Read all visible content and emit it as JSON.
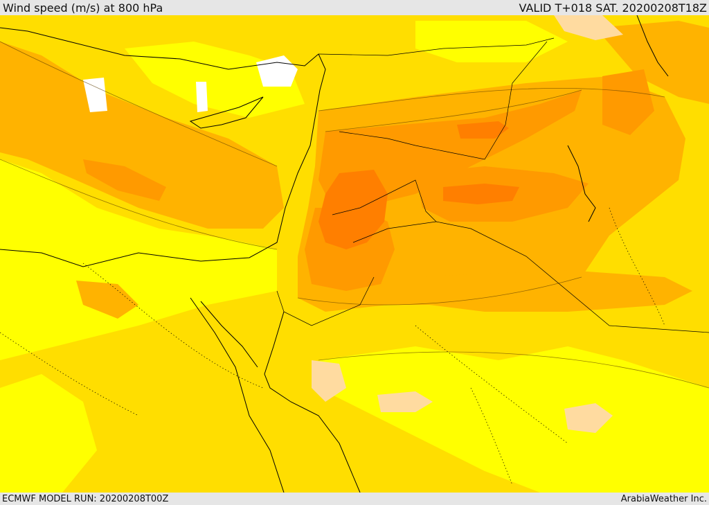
{
  "header": {
    "title": "Wind speed (m/s) at 800 hPa",
    "valid_time": "VALID T+018 SAT. 20200208T18Z"
  },
  "footer": {
    "model_run": "ECMWF MODEL RUN: 20200208T00Z",
    "credit": "ArabiaWeather Inc."
  },
  "colors": {
    "band_lightest": "#ffff00",
    "band_yellow": "#ffde00",
    "band_orange_light": "#ffb300",
    "band_orange": "#ff9a00",
    "band_orange_dark": "#ff7f00",
    "band_calm": "#ffdba0",
    "band_still": "#ffffff"
  }
}
